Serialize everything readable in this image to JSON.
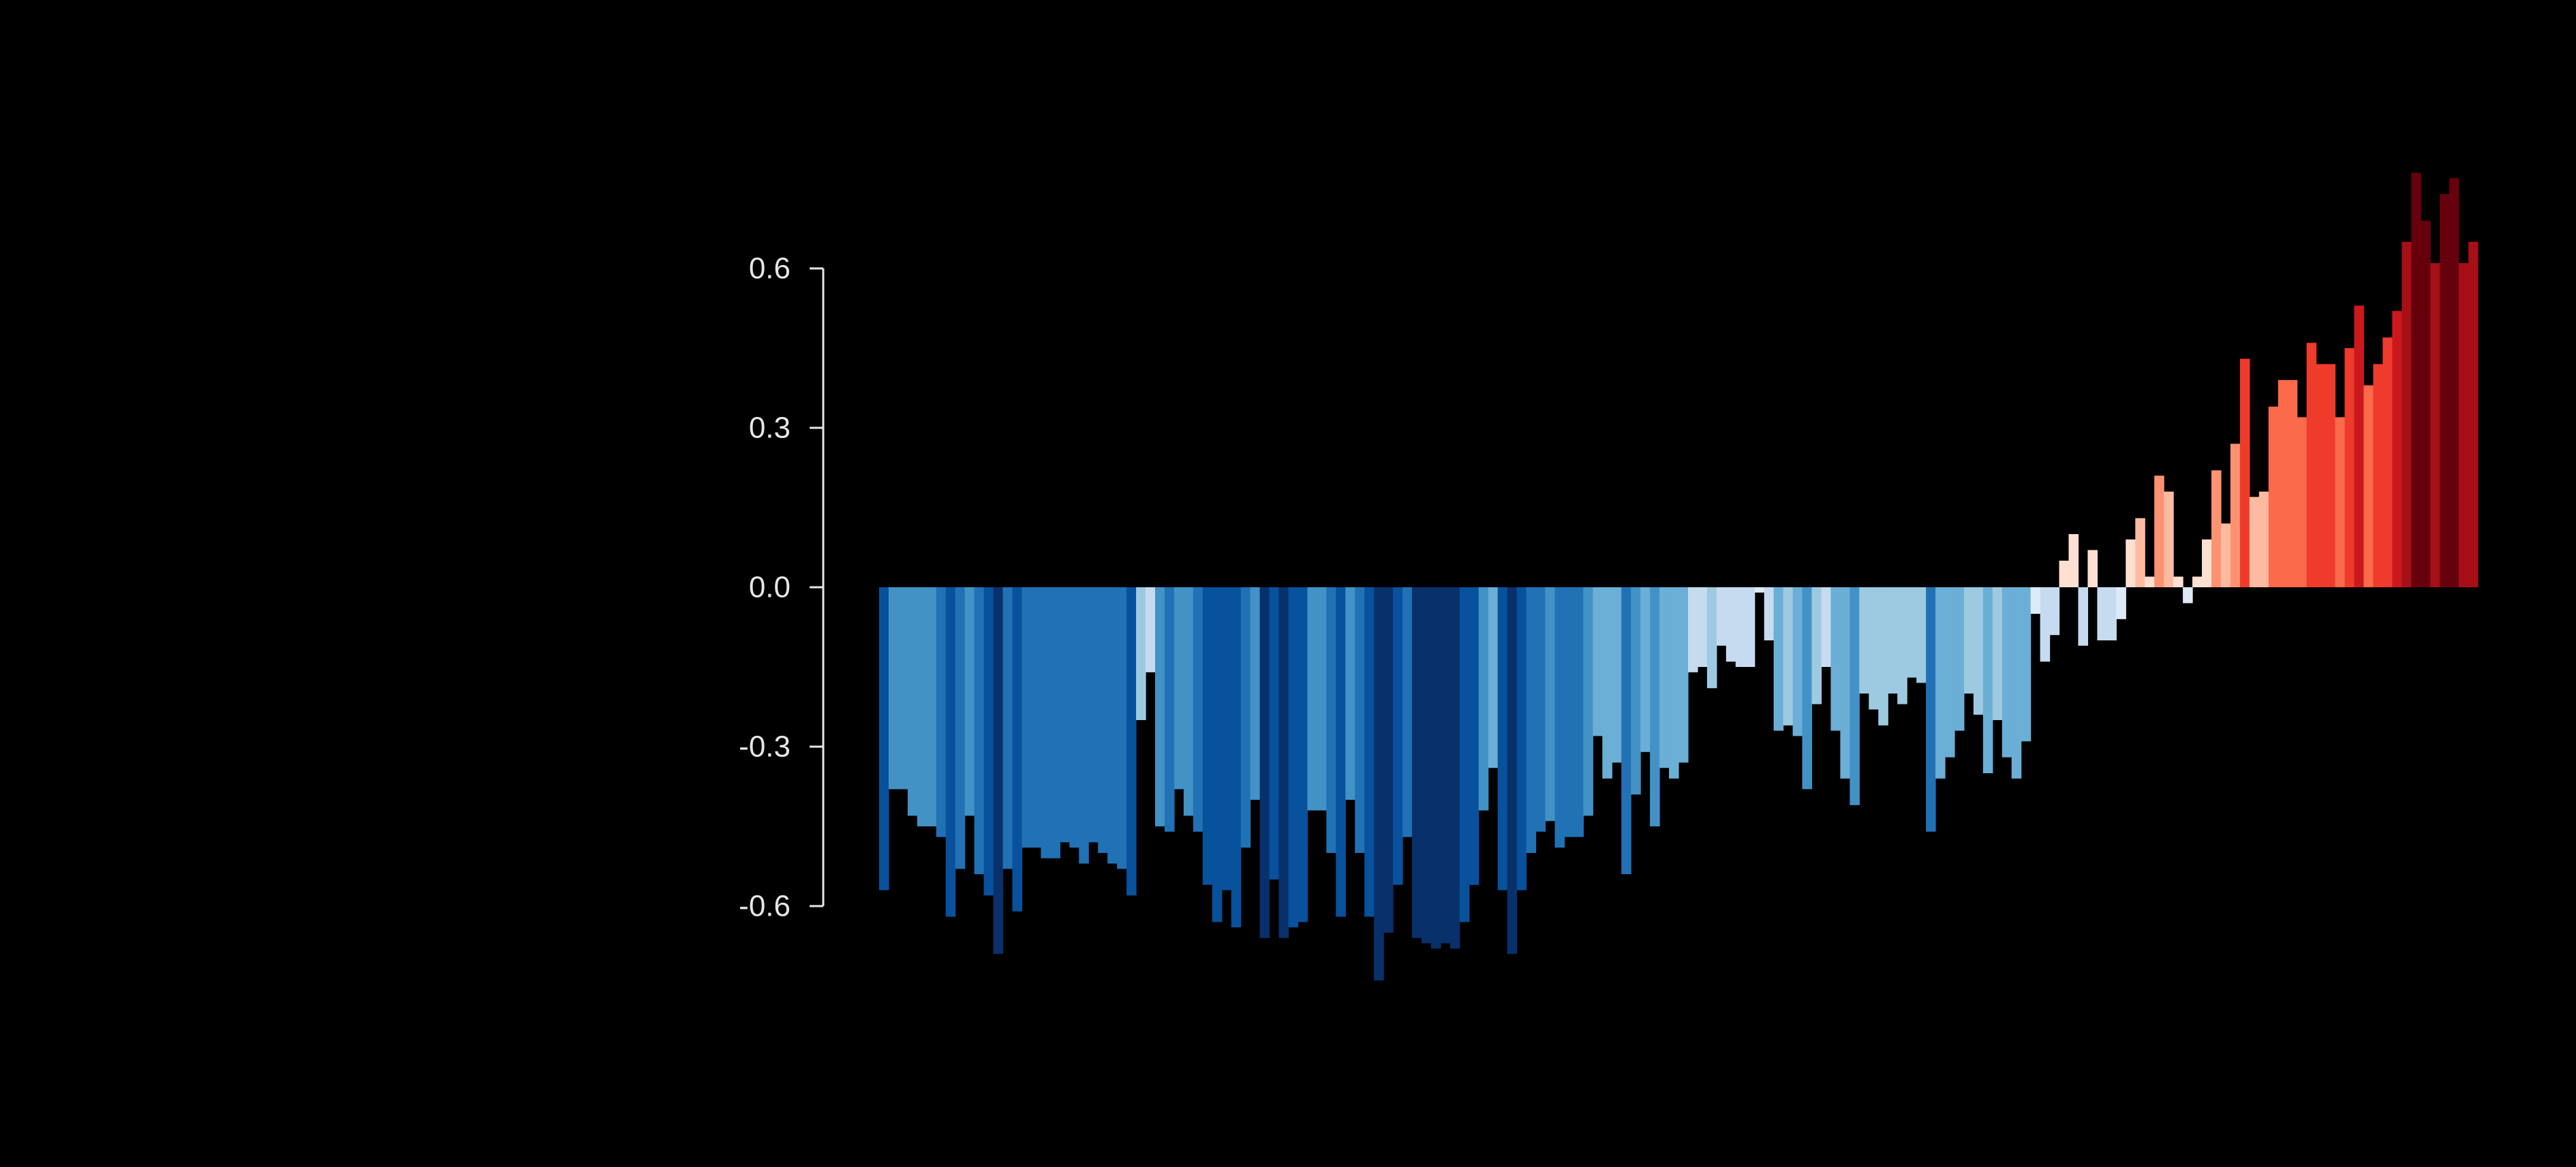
{
  "chart_data": {
    "type": "bar",
    "title": "",
    "xlabel": "",
    "ylabel": "",
    "ylim": [
      -0.72,
      0.78
    ],
    "yticks": [
      {
        "value": 0.6,
        "label": "0.6"
      },
      {
        "value": 0.3,
        "label": "0.3"
      },
      {
        "value": 0.0,
        "label": "0.0"
      },
      {
        "value": -0.3,
        "label": "-0.3"
      },
      {
        "value": -0.6,
        "label": "-0.6"
      }
    ],
    "grid": false,
    "legend": "none",
    "colors": {
      "background": "#000000",
      "axis": "#e6e6e6",
      "palette": [
        "#08306b",
        "#08519c",
        "#2171b5",
        "#4292c6",
        "#6baed6",
        "#9ecae1",
        "#c6dbef",
        "#deebf7",
        "#fee0d2",
        "#fcbba1",
        "#fc9272",
        "#fb6a4a",
        "#ef3b2c",
        "#cb181d",
        "#a50f15",
        "#67000d"
      ]
    },
    "values": [
      -0.57,
      -0.38,
      -0.38,
      -0.43,
      -0.45,
      -0.45,
      -0.47,
      -0.62,
      -0.53,
      -0.43,
      -0.54,
      -0.58,
      -0.69,
      -0.53,
      -0.61,
      -0.49,
      -0.49,
      -0.51,
      -0.51,
      -0.48,
      -0.49,
      -0.52,
      -0.48,
      -0.5,
      -0.52,
      -0.53,
      -0.58,
      -0.25,
      -0.16,
      -0.45,
      -0.46,
      -0.38,
      -0.43,
      -0.46,
      -0.56,
      -0.63,
      -0.57,
      -0.64,
      -0.49,
      -0.4,
      -0.66,
      -0.55,
      -0.66,
      -0.64,
      -0.63,
      -0.42,
      -0.42,
      -0.5,
      -0.62,
      -0.4,
      -0.5,
      -0.62,
      -0.74,
      -0.65,
      -0.56,
      -0.47,
      -0.66,
      -0.67,
      -0.68,
      -0.67,
      -0.68,
      -0.63,
      -0.56,
      -0.42,
      -0.34,
      -0.57,
      -0.69,
      -0.57,
      -0.5,
      -0.46,
      -0.44,
      -0.49,
      -0.47,
      -0.47,
      -0.43,
      -0.28,
      -0.36,
      -0.33,
      -0.54,
      -0.39,
      -0.31,
      -0.45,
      -0.34,
      -0.36,
      -0.33,
      -0.16,
      -0.15,
      -0.19,
      -0.11,
      -0.14,
      -0.15,
      -0.15,
      -0.01,
      -0.1,
      -0.27,
      -0.26,
      -0.28,
      -0.38,
      -0.22,
      -0.15,
      -0.27,
      -0.36,
      -0.41,
      -0.2,
      -0.23,
      -0.26,
      -0.2,
      -0.22,
      -0.17,
      -0.18,
      -0.46,
      -0.36,
      -0.32,
      -0.27,
      -0.2,
      -0.24,
      -0.35,
      -0.25,
      -0.32,
      -0.36,
      -0.29,
      -0.05,
      -0.14,
      -0.09,
      0.05,
      0.1,
      -0.11,
      0.07,
      -0.1,
      -0.1,
      -0.06,
      0.09,
      0.13,
      0.02,
      0.21,
      0.18,
      0.02,
      -0.03,
      0.02,
      0.09,
      0.22,
      0.12,
      0.27,
      0.43,
      0.17,
      0.18,
      0.34,
      0.39,
      0.39,
      0.32,
      0.46,
      0.42,
      0.42,
      0.32,
      0.45,
      0.53,
      0.38,
      0.42,
      0.47,
      0.52,
      0.65,
      0.78,
      0.69,
      0.61,
      0.74,
      0.77,
      0.61,
      0.65
    ]
  }
}
